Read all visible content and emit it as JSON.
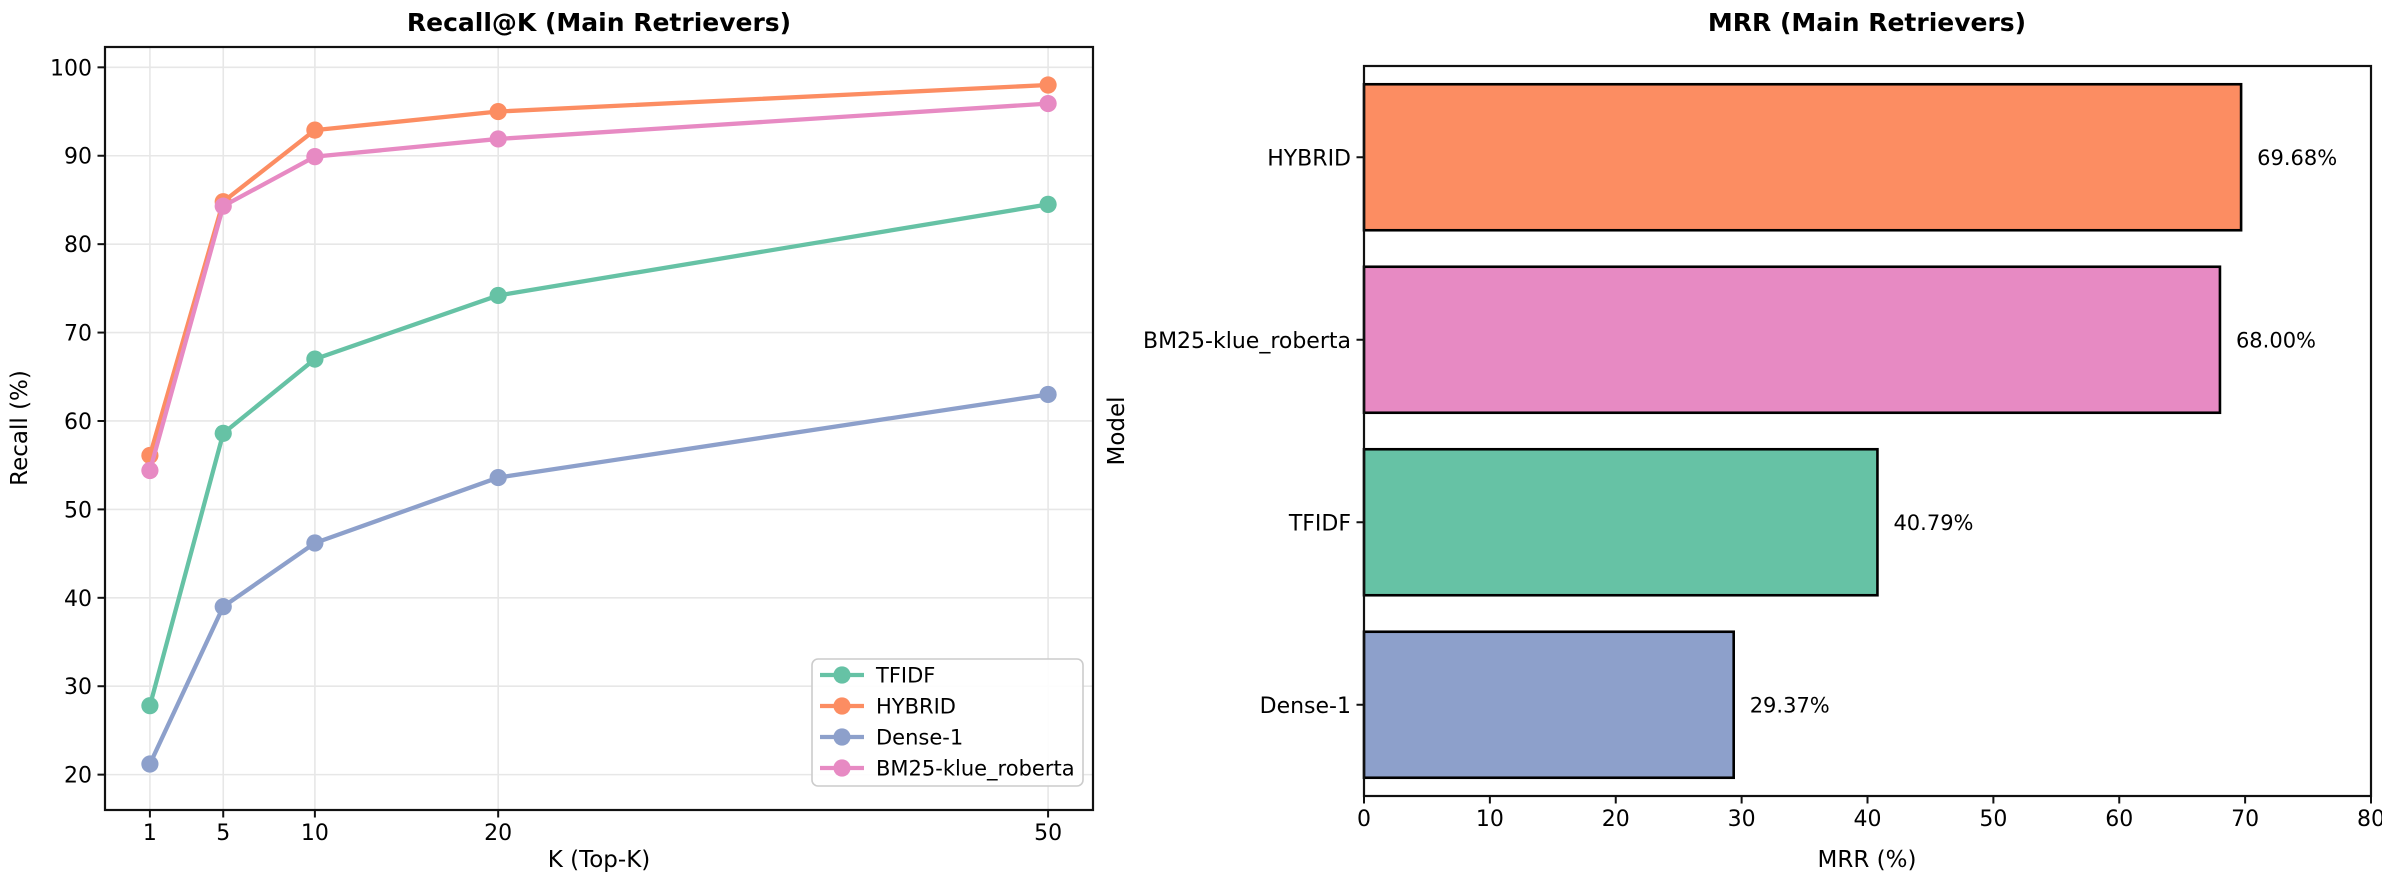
{
  "figure": {
    "background_color": "#ffffff",
    "frame_color": "#111111",
    "grid_color": "#e7e7e7",
    "text_color": "#000000"
  },
  "chart_data": [
    {
      "type": "line",
      "title": "Recall@K (Main Retrievers)",
      "xlabel": "K (Top-K)",
      "ylabel": "Recall (%)",
      "x": [
        1,
        5,
        10,
        20,
        50
      ],
      "xticks": [
        "1",
        "5",
        "10",
        "20",
        "50"
      ],
      "yticks": [
        "20",
        "30",
        "40",
        "50",
        "60",
        "70",
        "80",
        "90",
        "100"
      ],
      "ytick_values": [
        20,
        30,
        40,
        50,
        60,
        70,
        80,
        90,
        100
      ],
      "xlim": [
        -1.45,
        52.45
      ],
      "ylim": [
        16,
        102.3
      ],
      "grid": true,
      "legend_position": "lower right",
      "series": [
        {
          "name": "TFIDF",
          "color": "#66c2a5",
          "values": [
            27.8,
            58.6,
            67.0,
            74.2,
            84.5
          ]
        },
        {
          "name": "HYBRID",
          "color": "#fc8d62",
          "values": [
            56.1,
            84.8,
            92.9,
            95.0,
            98.0
          ]
        },
        {
          "name": "Dense-1",
          "color": "#8da0cb",
          "values": [
            21.2,
            39.0,
            46.2,
            53.6,
            63.0
          ]
        },
        {
          "name": "BM25-klue_roberta",
          "color": "#e78ac3",
          "values": [
            54.4,
            84.3,
            89.9,
            91.9,
            95.9
          ]
        }
      ]
    },
    {
      "type": "bar",
      "orientation": "horizontal",
      "title": "MRR (Main Retrievers)",
      "xlabel": "MRR (%)",
      "ylabel": "Model",
      "categories": [
        "HYBRID",
        "BM25-klue_roberta",
        "TFIDF",
        "Dense-1"
      ],
      "values": [
        69.68,
        68.0,
        40.79,
        29.37
      ],
      "value_labels": [
        "69.68%",
        "68.00%",
        "40.79%",
        "29.37%"
      ],
      "colors": [
        "#fc8d62",
        "#e78ac3",
        "#66c2a5",
        "#8da0cb"
      ],
      "bar_edge_color": "#000000",
      "xticks": [
        "0",
        "10",
        "20",
        "30",
        "40",
        "50",
        "60",
        "70",
        "80"
      ],
      "xtick_values": [
        0,
        10,
        20,
        30,
        40,
        50,
        60,
        70,
        80
      ],
      "xlim": [
        0,
        80
      ],
      "grid": false
    }
  ]
}
